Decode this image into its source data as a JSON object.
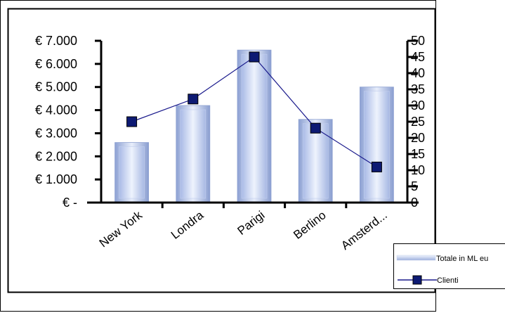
{
  "chart_data": {
    "type": "bar",
    "categories": [
      "New York",
      "Londra",
      "Parigi",
      "Berlino",
      "Amsterd..."
    ],
    "series": [
      {
        "name": "Totale in ML euro",
        "type": "bar",
        "axis": "left",
        "values": [
          2600,
          4200,
          6600,
          3600,
          5000
        ]
      },
      {
        "name": "Clienti",
        "type": "line",
        "axis": "right",
        "values": [
          25,
          32,
          45,
          23,
          11
        ]
      }
    ],
    "y_left": {
      "ylim": [
        0,
        7000
      ],
      "tick_values": [
        0,
        1000,
        2000,
        3000,
        4000,
        5000,
        6000,
        7000
      ],
      "tick_labels": [
        "€ -",
        "€ 1.000",
        "€ 2.000",
        "€ 3.000",
        "€ 4.000",
        "€ 5.000",
        "€ 6.000",
        "€ 7.000"
      ]
    },
    "y_right": {
      "ylim": [
        0,
        50
      ],
      "tick_values": [
        0,
        5,
        10,
        15,
        20,
        25,
        30,
        35,
        40,
        45,
        50
      ],
      "tick_labels": [
        "0",
        "5",
        "10",
        "15",
        "20",
        "25",
        "30",
        "35",
        "40",
        "45",
        "50"
      ]
    },
    "legend": {
      "placement": "bottom-right",
      "entries": [
        "Totale in ML eu",
        "Clienti"
      ]
    },
    "grid": false,
    "colors": {
      "bar_light": "#e4ecfb",
      "bar_mid": "#b6c6ea",
      "bar_dark": "#7b8fc7",
      "line": "#1a1a8c",
      "marker": "#0d1a73"
    }
  }
}
